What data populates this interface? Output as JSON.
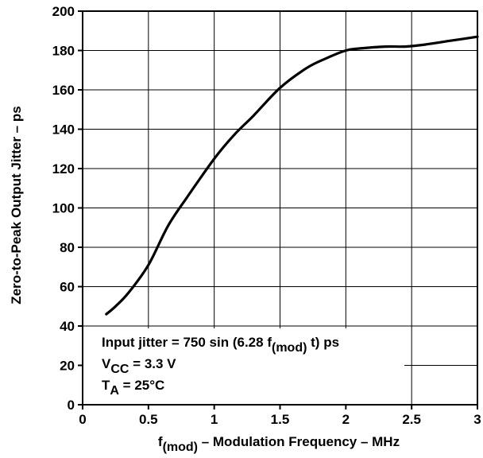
{
  "chart_data": {
    "type": "line",
    "xlabel": {
      "prefix": "f",
      "sub": "(mod)",
      "rest": " – Modulation Frequency – MHz"
    },
    "ylabel": "Zero-to-Peak Output Jitter – ps",
    "xlim": [
      0,
      3
    ],
    "ylim": [
      0,
      200
    ],
    "xticks": [
      {
        "v": 0,
        "label": "0"
      },
      {
        "v": 0.5,
        "label": "0.5"
      },
      {
        "v": 1,
        "label": "1"
      },
      {
        "v": 1.5,
        "label": "1.5"
      },
      {
        "v": 2,
        "label": "2"
      },
      {
        "v": 2.5,
        "label": "2.5"
      },
      {
        "v": 3,
        "label": "3"
      }
    ],
    "yticks": [
      {
        "v": 0,
        "label": "0"
      },
      {
        "v": 20,
        "label": "20"
      },
      {
        "v": 40,
        "label": "40"
      },
      {
        "v": 60,
        "label": "60"
      },
      {
        "v": 80,
        "label": "80"
      },
      {
        "v": 100,
        "label": "100"
      },
      {
        "v": 120,
        "label": "120"
      },
      {
        "v": 140,
        "label": "140"
      },
      {
        "v": 160,
        "label": "160"
      },
      {
        "v": 180,
        "label": "180"
      },
      {
        "v": 200,
        "label": "200"
      }
    ],
    "grid": true,
    "series": [
      {
        "x": [
          0.18,
          0.25,
          0.35,
          0.5,
          0.65,
          0.8,
          1.0,
          1.15,
          1.3,
          1.5,
          1.7,
          1.85,
          2.0,
          2.1,
          2.3,
          2.45,
          2.6,
          2.8,
          3.0
        ],
        "y": [
          46,
          50,
          57,
          71,
          91,
          106,
          125,
          137,
          147,
          161,
          171,
          176,
          180,
          181,
          182,
          182,
          183,
          185,
          187
        ]
      }
    ],
    "annotations": {
      "line1": {
        "prefix": "Input jitter = 750 sin (6.28 f",
        "sub": "(mod)",
        "suffix": " t) ps"
      },
      "line2": {
        "prefix": "V",
        "sub": "CC",
        "suffix": " = 3.3 V"
      },
      "line3": {
        "prefix": "T",
        "sub": "A",
        "suffix": " = 25°C"
      }
    }
  }
}
